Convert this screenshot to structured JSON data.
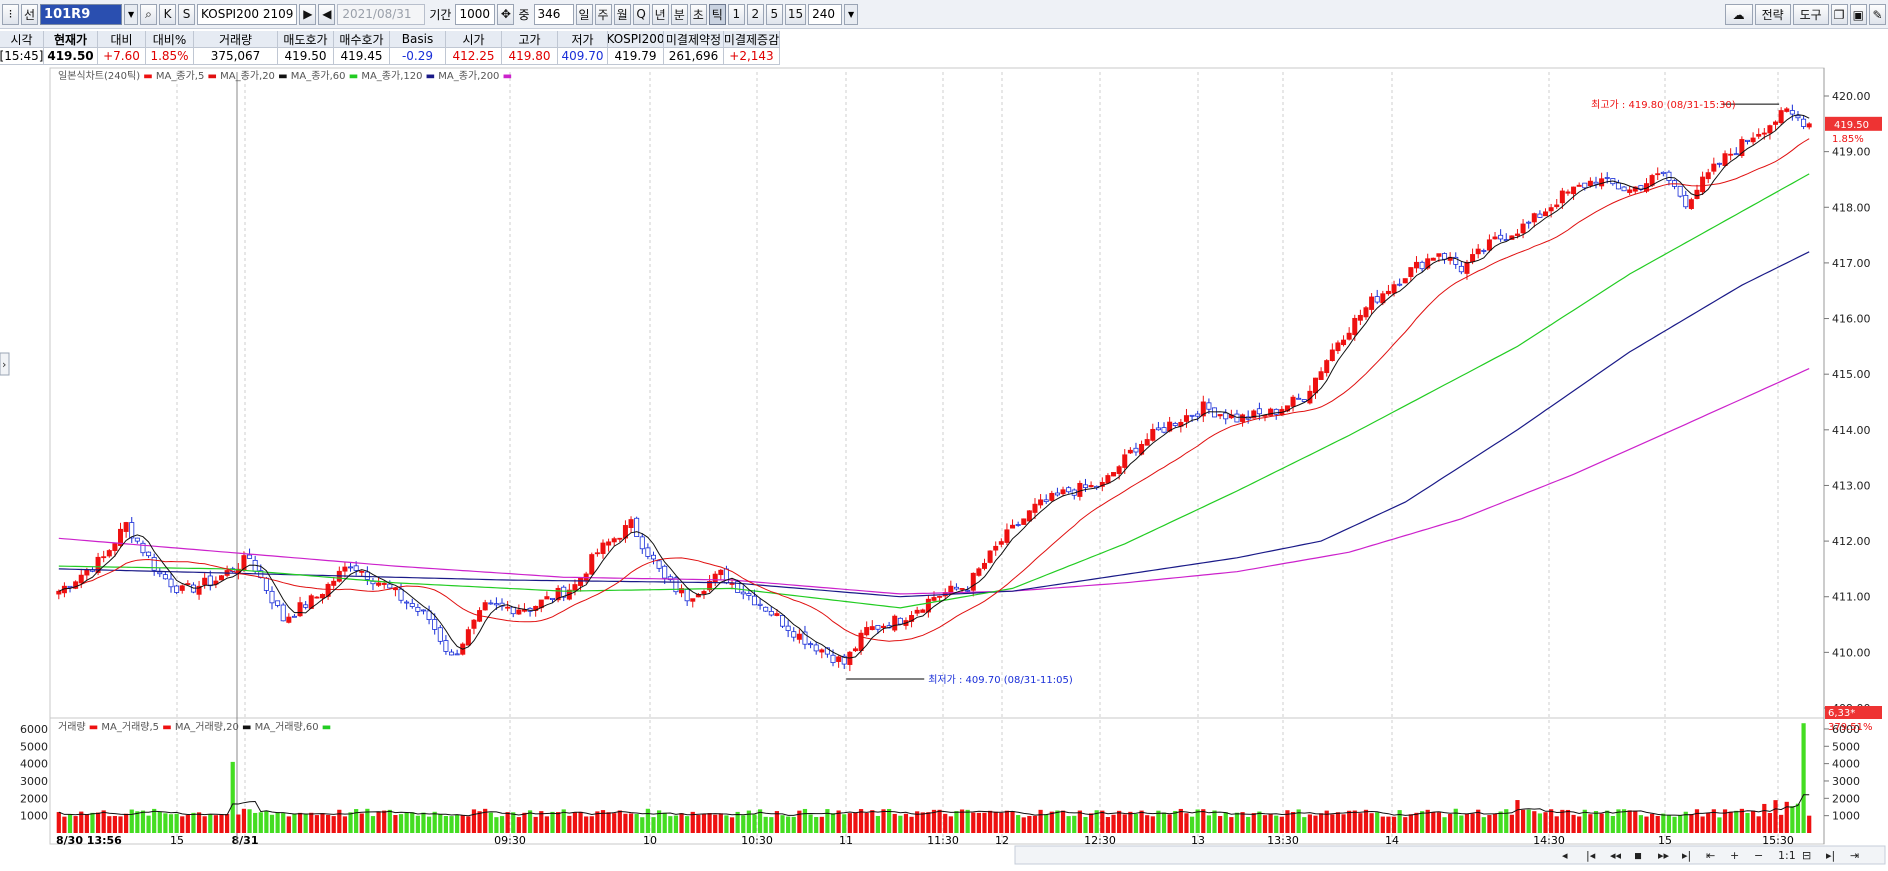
{
  "toolbar": {
    "code": "101R9",
    "name": "KOSPI200 2109",
    "date": "2021/08/31",
    "period_label": "기간",
    "period_value": "1000",
    "scroll_label": "중",
    "scroll_value": "346",
    "interval_buttons": [
      "일",
      "주",
      "월",
      "Q",
      "년",
      "분",
      "초",
      "틱",
      "1",
      "2",
      "5",
      "15"
    ],
    "active_interval": "틱",
    "interval_value": "240",
    "right_buttons": [
      "전략",
      "도구"
    ]
  },
  "info": {
    "headers": [
      "시각",
      "현재가",
      "대비",
      "대비%",
      "거래량",
      "매도호가",
      "매수호가",
      "Basis",
      "시가",
      "고가",
      "저가",
      "KOSPI200",
      "미결제약정",
      "미결제증감"
    ],
    "values": [
      "[15:45]",
      "419.50",
      "+7.60",
      "1.85%",
      "375,067",
      "419.50",
      "419.45",
      "-0.29",
      "412.25",
      "419.80",
      "409.70",
      "419.79",
      "261,696",
      "+2,143"
    ],
    "colors": [
      "#000",
      "#000",
      "#e00000",
      "#e00000",
      "#000",
      "#000",
      "#000",
      "#1a2fd8",
      "#e00000",
      "#e00000",
      "#1a2fd8",
      "#000",
      "#000",
      "#e00000"
    ]
  },
  "legend_price": [
    "일본식차트(240틱)",
    "MA_종가,5",
    "MA_종가,20",
    "MA_종가,60",
    "MA_종가,120",
    "MA_종가,200"
  ],
  "legend_volume": [
    "거래량",
    "MA_거래량,5",
    "MA_거래량,20",
    "MA_거래량,60"
  ],
  "annotations": {
    "high": "최고가 : 419.80 (08/31-15:30)",
    "low": "최저가 : 409.70 (08/31-11:05)",
    "price_tag": "419.50",
    "pct_tag": "1.85%",
    "vol_tag": "6,33*",
    "vol_pct": "379.51%"
  },
  "colors": {
    "up": "#ee1111",
    "down": "#1a2fd8",
    "ma5": "#111111",
    "ma20": "#e01010",
    "ma60": "#22cc22",
    "ma120": "#1a1a88",
    "ma200": "#cc22cc",
    "vol_up": "#ee1111",
    "vol_down": "#44dd22"
  },
  "chart_data": {
    "type": "candlestick",
    "y_ticks": [
      "420.00",
      "419.00",
      "418.00",
      "417.00",
      "416.00",
      "415.00",
      "414.00",
      "413.00",
      "412.00",
      "411.00",
      "410.00",
      "409.00"
    ],
    "ylim": [
      409.0,
      420.0
    ],
    "vol_ticks": [
      "6000",
      "5000",
      "4000",
      "3000",
      "2000",
      "1000"
    ],
    "vol_ylim": [
      0,
      6400
    ],
    "x_labels": [
      "8/30 13:56",
      "15",
      "8/31",
      "09:30",
      "10",
      "10:30",
      "11",
      "11:30",
      "12",
      "12:30",
      "13",
      "13:30",
      "14",
      "14:30",
      "15",
      "15:30"
    ],
    "close_keypoints": [
      [
        0,
        411.1
      ],
      [
        8,
        411.7
      ],
      [
        12,
        412.3
      ],
      [
        18,
        411.4
      ],
      [
        22,
        411.1
      ],
      [
        28,
        411.3
      ],
      [
        34,
        411.7
      ],
      [
        40,
        410.6
      ],
      [
        46,
        411.0
      ],
      [
        52,
        411.6
      ],
      [
        58,
        411.2
      ],
      [
        66,
        410.6
      ],
      [
        70,
        409.9
      ],
      [
        76,
        410.8
      ],
      [
        84,
        410.8
      ],
      [
        92,
        411.2
      ],
      [
        96,
        411.8
      ],
      [
        102,
        412.3
      ],
      [
        108,
        411.3
      ],
      [
        112,
        411.0
      ],
      [
        118,
        411.4
      ],
      [
        126,
        410.8
      ],
      [
        132,
        410.3
      ],
      [
        140,
        409.8
      ],
      [
        144,
        410.4
      ],
      [
        150,
        410.6
      ],
      [
        156,
        411.0
      ],
      [
        162,
        411.2
      ],
      [
        168,
        412.0
      ],
      [
        174,
        412.6
      ],
      [
        180,
        412.9
      ],
      [
        186,
        413.0
      ],
      [
        192,
        413.7
      ],
      [
        198,
        414.1
      ],
      [
        204,
        414.4
      ],
      [
        210,
        414.2
      ],
      [
        216,
        414.3
      ],
      [
        222,
        414.6
      ],
      [
        228,
        415.6
      ],
      [
        234,
        416.3
      ],
      [
        240,
        416.8
      ],
      [
        246,
        417.2
      ],
      [
        250,
        416.9
      ],
      [
        256,
        417.4
      ],
      [
        262,
        417.7
      ],
      [
        268,
        418.2
      ],
      [
        274,
        418.5
      ],
      [
        280,
        418.3
      ],
      [
        286,
        418.6
      ],
      [
        290,
        418.1
      ],
      [
        296,
        418.8
      ],
      [
        302,
        419.3
      ],
      [
        308,
        419.7
      ],
      [
        312,
        419.5
      ]
    ],
    "ma60_keypoints": [
      [
        0,
        411.55
      ],
      [
        30,
        411.5
      ],
      [
        60,
        411.25
      ],
      [
        90,
        411.1
      ],
      [
        120,
        411.15
      ],
      [
        150,
        410.8
      ],
      [
        170,
        411.15
      ],
      [
        190,
        411.95
      ],
      [
        210,
        412.9
      ],
      [
        230,
        413.9
      ],
      [
        260,
        415.5
      ],
      [
        280,
        416.8
      ],
      [
        296,
        417.7
      ],
      [
        312,
        418.6
      ]
    ],
    "ma120_keypoints": [
      [
        0,
        411.5
      ],
      [
        40,
        411.4
      ],
      [
        80,
        411.3
      ],
      [
        120,
        411.25
      ],
      [
        150,
        411.0
      ],
      [
        170,
        411.1
      ],
      [
        190,
        411.4
      ],
      [
        210,
        411.7
      ],
      [
        225,
        412.0
      ],
      [
        240,
        412.7
      ],
      [
        260,
        414.0
      ],
      [
        280,
        415.4
      ],
      [
        300,
        416.6
      ],
      [
        312,
        417.2
      ]
    ],
    "ma200_keypoints": [
      [
        0,
        412.05
      ],
      [
        30,
        411.8
      ],
      [
        60,
        411.55
      ],
      [
        90,
        411.35
      ],
      [
        120,
        411.3
      ],
      [
        150,
        411.05
      ],
      [
        170,
        411.1
      ],
      [
        190,
        411.25
      ],
      [
        210,
        411.45
      ],
      [
        230,
        411.8
      ],
      [
        250,
        412.4
      ],
      [
        270,
        413.2
      ],
      [
        290,
        414.1
      ],
      [
        312,
        415.1
      ]
    ],
    "volume_highlights": [
      [
        31,
        4100
      ],
      [
        311,
        6330
      ]
    ],
    "high": 419.8,
    "low": 409.7,
    "last": 419.5
  }
}
